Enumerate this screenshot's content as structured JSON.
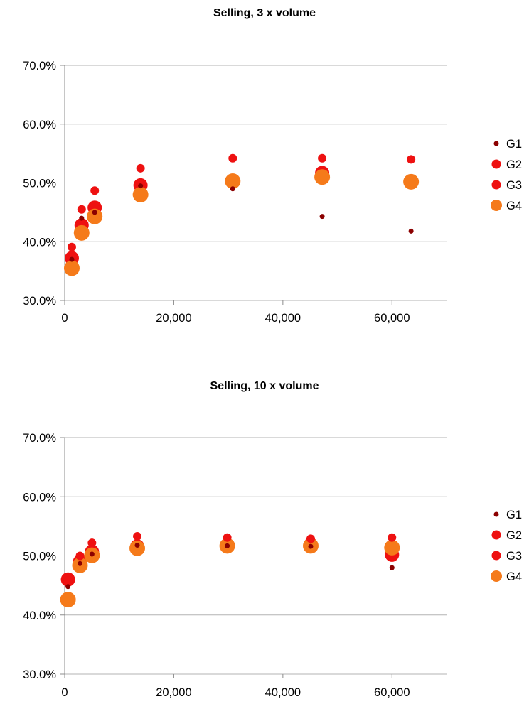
{
  "chart_data": [
    {
      "type": "scatter",
      "title": "Selling, 3 x volume",
      "xlabel": "",
      "ylabel": "",
      "xlim": [
        0,
        70000
      ],
      "ylim": [
        0.3,
        0.7
      ],
      "x_ticks": [
        0,
        20000,
        40000,
        60000
      ],
      "x_tick_labels": [
        "0",
        "20,000",
        "40,000",
        "60,000"
      ],
      "y_ticks": [
        0.3,
        0.4,
        0.5,
        0.6,
        0.7
      ],
      "y_tick_labels": [
        "30.0%",
        "40.0%",
        "50.0%",
        "60.0%",
        "70.0%"
      ],
      "grid": "horizontal",
      "legend_position": "right",
      "series": [
        {
          "name": "G1",
          "color": "#8b0000",
          "marker_size": 3.5,
          "points": [
            [
              1300,
              0.37
            ],
            [
              3100,
              0.44
            ],
            [
              5500,
              0.45
            ],
            [
              13900,
              0.495
            ],
            [
              30800,
              0.49
            ],
            [
              47200,
              0.443
            ],
            [
              63500,
              0.418
            ]
          ]
        },
        {
          "name": "G2",
          "color": "#ee1111",
          "marker_size": 6,
          "points": [
            [
              1300,
              0.391
            ],
            [
              3100,
              0.455
            ],
            [
              5500,
              0.487
            ],
            [
              13900,
              0.525
            ],
            [
              30800,
              0.542
            ],
            [
              47200,
              0.542
            ],
            [
              63500,
              0.54
            ]
          ]
        },
        {
          "name": "G3",
          "color": "#ee1111",
          "marker_size": 10,
          "points": [
            [
              1300,
              0.372
            ],
            [
              3100,
              0.428
            ],
            [
              5500,
              0.458
            ],
            [
              13900,
              0.496
            ],
            [
              30800,
              0.503
            ],
            [
              47200,
              0.517
            ],
            [
              63500,
              0.503
            ]
          ]
        },
        {
          "name": "G4",
          "color": "#f57a1a",
          "marker_size": 11,
          "points": [
            [
              1300,
              0.355
            ],
            [
              3100,
              0.415
            ],
            [
              5500,
              0.443
            ],
            [
              13900,
              0.48
            ],
            [
              30800,
              0.503
            ],
            [
              47200,
              0.51
            ],
            [
              63500,
              0.502
            ]
          ]
        }
      ]
    },
    {
      "type": "scatter",
      "title": "Selling, 10 x volume",
      "xlabel": "",
      "ylabel": "",
      "xlim": [
        0,
        70000
      ],
      "ylim": [
        0.3,
        0.7
      ],
      "x_ticks": [
        0,
        20000,
        40000,
        60000
      ],
      "x_tick_labels": [
        "0",
        "20,000",
        "40,000",
        "60,000"
      ],
      "y_ticks": [
        0.3,
        0.4,
        0.5,
        0.6,
        0.7
      ],
      "y_tick_labels": [
        "30.0%",
        "40.0%",
        "50.0%",
        "60.0%",
        "70.0%"
      ],
      "grid": "horizontal",
      "legend_position": "right",
      "series": [
        {
          "name": "G1",
          "color": "#8b0000",
          "marker_size": 3.5,
          "points": [
            [
              600,
              0.448
            ],
            [
              2800,
              0.487
            ],
            [
              5000,
              0.503
            ],
            [
              13300,
              0.518
            ],
            [
              29800,
              0.517
            ],
            [
              45100,
              0.516
            ],
            [
              60000,
              0.48
            ]
          ]
        },
        {
          "name": "G2",
          "color": "#ee1111",
          "marker_size": 6,
          "points": [
            [
              600,
              0.458
            ],
            [
              2800,
              0.5
            ],
            [
              5000,
              0.522
            ],
            [
              13300,
              0.533
            ],
            [
              29800,
              0.531
            ],
            [
              45100,
              0.529
            ],
            [
              60000,
              0.531
            ]
          ]
        },
        {
          "name": "G3",
          "color": "#ee1111",
          "marker_size": 10,
          "points": [
            [
              600,
              0.46
            ],
            [
              2800,
              0.49
            ],
            [
              5000,
              0.507
            ],
            [
              13300,
              0.516
            ],
            [
              29800,
              0.518
            ],
            [
              45100,
              0.519
            ],
            [
              60000,
              0.502
            ]
          ]
        },
        {
          "name": "G4",
          "color": "#f57a1a",
          "marker_size": 11,
          "points": [
            [
              600,
              0.426
            ],
            [
              2800,
              0.484
            ],
            [
              5000,
              0.501
            ],
            [
              13300,
              0.513
            ],
            [
              29800,
              0.517
            ],
            [
              45100,
              0.517
            ],
            [
              60000,
              0.514
            ]
          ]
        }
      ]
    }
  ]
}
